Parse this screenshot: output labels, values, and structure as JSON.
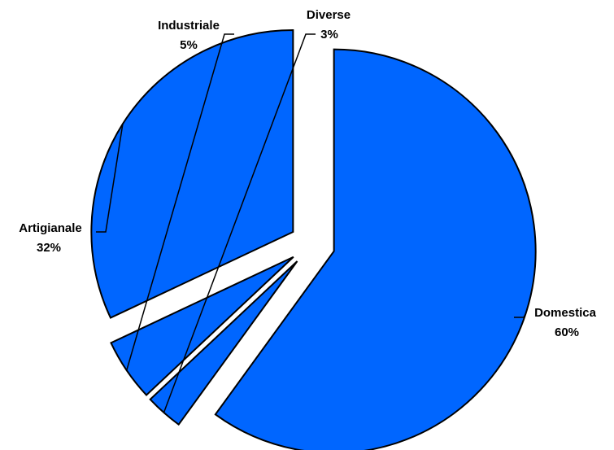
{
  "chart_data": {
    "type": "pie",
    "exploded": true,
    "slices": [
      {
        "label": "Domestica",
        "value": 60,
        "value_label": "60%"
      },
      {
        "label": "Diverse",
        "value": 3,
        "value_label": "3%"
      },
      {
        "label": "Industriale",
        "value": 5,
        "value_label": "5%"
      },
      {
        "label": "Artigianale",
        "value": 32,
        "value_label": "32%"
      }
    ],
    "slice_color": "#0066FF",
    "outline_color": "#000000",
    "legend": "none",
    "data_labels": "outside with leader lines"
  }
}
